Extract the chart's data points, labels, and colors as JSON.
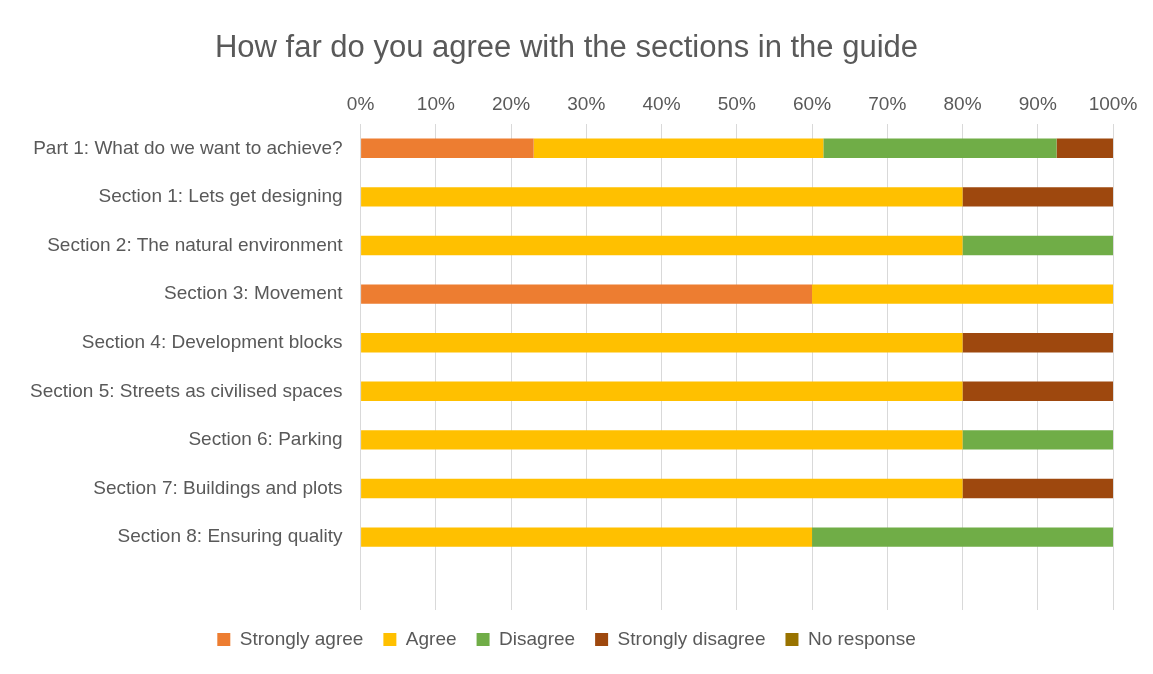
{
  "chart_data": {
    "type": "bar",
    "orientation": "horizontal",
    "stacked": true,
    "title": "How far do you agree with the sections in the guide",
    "categories": [
      "Part 1: What do we want to achieve?",
      "Section 1: Lets get designing",
      "Section 2: The natural environment",
      "Section 3: Movement",
      "Section 4: Development blocks",
      "Section 5: Streets as civilised spaces",
      "Section 6: Parking",
      "Section 7: Buildings and plots",
      "Section 8: Ensuring quality",
      null
    ],
    "series": [
      {
        "name": "Strongly agree",
        "color": "#ed7d31",
        "values": [
          23,
          0,
          0,
          60,
          0,
          0,
          0,
          0,
          0,
          null
        ]
      },
      {
        "name": "Agree",
        "color": "#ffc000",
        "values": [
          38.5,
          80,
          80,
          40,
          80,
          80,
          80,
          80,
          60,
          null
        ]
      },
      {
        "name": "Disagree",
        "color": "#70ad47",
        "values": [
          31,
          0,
          20,
          0,
          0,
          0,
          20,
          0,
          40,
          null
        ]
      },
      {
        "name": "Strongly disagree",
        "color": "#9e480e",
        "values": [
          7.5,
          20,
          0,
          0,
          20,
          20,
          0,
          20,
          0,
          null
        ]
      },
      {
        "name": "No response",
        "color": "#997300",
        "values": [
          0,
          0,
          0,
          0,
          0,
          0,
          0,
          0,
          0,
          null
        ]
      }
    ],
    "xlim": [
      0,
      100
    ],
    "xticks": [
      {
        "value": 0,
        "label": "0%"
      },
      {
        "value": 10,
        "label": "10%"
      },
      {
        "value": 20,
        "label": "20%"
      },
      {
        "value": 30,
        "label": "30%"
      },
      {
        "value": 40,
        "label": "40%"
      },
      {
        "value": 50,
        "label": "50%"
      },
      {
        "value": 60,
        "label": "60%"
      },
      {
        "value": 70,
        "label": "70%"
      },
      {
        "value": 80,
        "label": "80%"
      },
      {
        "value": 90,
        "label": "90%"
      },
      {
        "value": 100,
        "label": "100%"
      }
    ],
    "grid": "x",
    "legend": "bottom"
  }
}
